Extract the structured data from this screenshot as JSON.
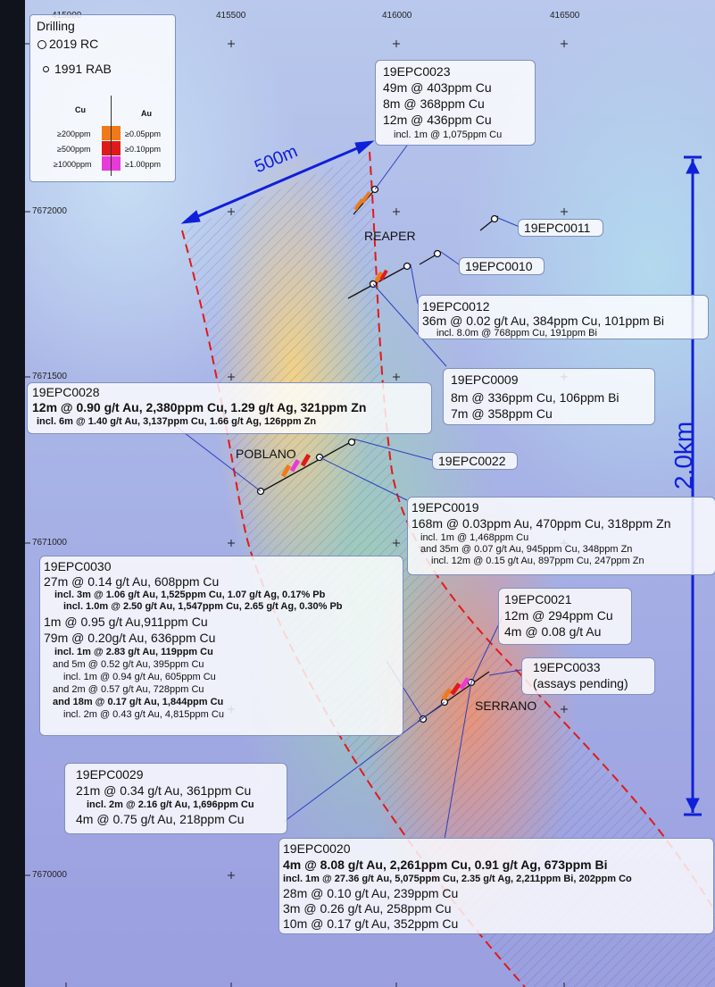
{
  "legend": {
    "title": "Drilling",
    "rc": "2019 RC",
    "rab": "1991 RAB",
    "cu_header": "Cu",
    "au_header": "Au",
    "cu_levels": [
      "≥200ppm",
      "≥500ppm",
      "≥1000ppm"
    ],
    "au_levels": [
      "≥0.05ppm",
      "≥0.10ppm",
      "≥1.00ppm"
    ],
    "colors": [
      "#f07a1a",
      "#e01a1a",
      "#e83ad8"
    ]
  },
  "grid": {
    "eastings": [
      "415000",
      "415500",
      "416000",
      "416500"
    ],
    "northings": [
      "7672000",
      "7671500",
      "7671000",
      "7670000"
    ]
  },
  "scale": {
    "short": "500m",
    "long": "2.0km"
  },
  "places": {
    "reaper": "REAPER",
    "poblano": "POBLANO",
    "serrano": "SERRANO"
  },
  "holes": {
    "c0023": {
      "id": "19EPC0023",
      "l1": "49m @  403ppm Cu",
      "l2": "8m @  368ppm Cu",
      "l3": "12m @  436ppm Cu",
      "l4": "incl. 1m @ 1,075ppm Cu"
    },
    "c0011": {
      "id": "19EPC0011"
    },
    "c0010": {
      "id": "19EPC0010"
    },
    "c0012": {
      "id": "19EPC0012",
      "l1": "36m @  0.02 g/t Au, 384ppm Cu, 101ppm Bi",
      "l2": "incl. 8.0m @ 768ppm Cu, 191ppm Bi"
    },
    "c0009": {
      "id": "19EPC0009",
      "l1": "8m @ 336ppm Cu, 106ppm Bi",
      "l2": "7m @ 358ppm Cu"
    },
    "c0028": {
      "id": "19EPC0028",
      "l1": "12m @ 0.90 g/t Au, 2,380ppm Cu, 1.29 g/t Ag, 321ppm Zn",
      "l2": "incl. 6m @ 1.40 g/t Au, 3,137ppm Cu, 1.66 g/t Ag, 126ppm Zn"
    },
    "c0022": {
      "id": "19EPC0022"
    },
    "c0019": {
      "id": "19EPC0019",
      "l1": "168m @  0.03ppm Au, 470ppm Cu, 318ppm Zn",
      "l2": "incl. 1m @ 1,468ppm Cu",
      "l3": "and 35m @ 0.07 g/t Au, 945ppm Cu, 348ppm Zn",
      "l4": "incl. 12m @ 0.15 g/t Au, 897ppm Cu, 247ppm Zn"
    },
    "c0030": {
      "id": "19EPC0030",
      "l1": "27m @ 0.14 g/t Au, 608ppm Cu",
      "l2": "incl. 3m @ 1.06 g/t Au, 1,525ppm Cu, 1.07 g/t Ag, 0.17% Pb",
      "l3": "incl. 1.0m @ 2.50 g/t Au, 1,547ppm Cu, 2.65 g/t Ag, 0.30% Pb",
      "l4": "1m @ 0.95 g/t Au,911ppm Cu",
      "l5": "79m @ 0.20g/t Au, 636ppm Cu",
      "l6": "incl. 1m @ 2.83 g/t Au, 119ppm Cu",
      "l7": "and 5m @ 0.52 g/t Au, 395ppm Cu",
      "l8": "incl. 1m @ 0.94 g/t Au, 605ppm Cu",
      "l9": "and 2m @ 0.57 g/t Au, 728ppm Cu",
      "l10": "and 18m @ 0.17 g/t Au, 1,844ppm Cu",
      "l11": "incl. 2m @ 0.43 g/t Au, 4,815ppm Cu"
    },
    "c0021": {
      "id": "19EPC0021",
      "l1": "12m @ 294ppm Cu",
      "l2": "4m @ 0.08 g/t Au"
    },
    "c0033": {
      "id": "19EPC0033",
      "l1": "(assays pending)"
    },
    "c0029": {
      "id": "19EPC0029",
      "l1": "21m @ 0.34 g/t Au, 361ppm Cu",
      "l2": "incl. 2m @ 2.16 g/t Au, 1,696ppm Cu",
      "l3": "4m @ 0.75 g/t Au, 218ppm Cu"
    },
    "c0020": {
      "id": "19EPC0020",
      "l1": "4m @ 8.08 g/t Au, 2,261ppm Cu, 0.91 g/t Ag, 673ppm Bi",
      "l2": "incl. 1m @ 27.36 g/t Au, 5,075ppm Cu, 2.35 g/t Ag, 2,211ppm Bi, 202ppm Co",
      "l3": "28m @ 0.10 g/t Au, 239ppm Cu",
      "l4": "3m @ 0.26 g/t Au, 258ppm Cu",
      "l5": "10m @ 0.17 g/t Au, 352ppm Cu"
    }
  }
}
